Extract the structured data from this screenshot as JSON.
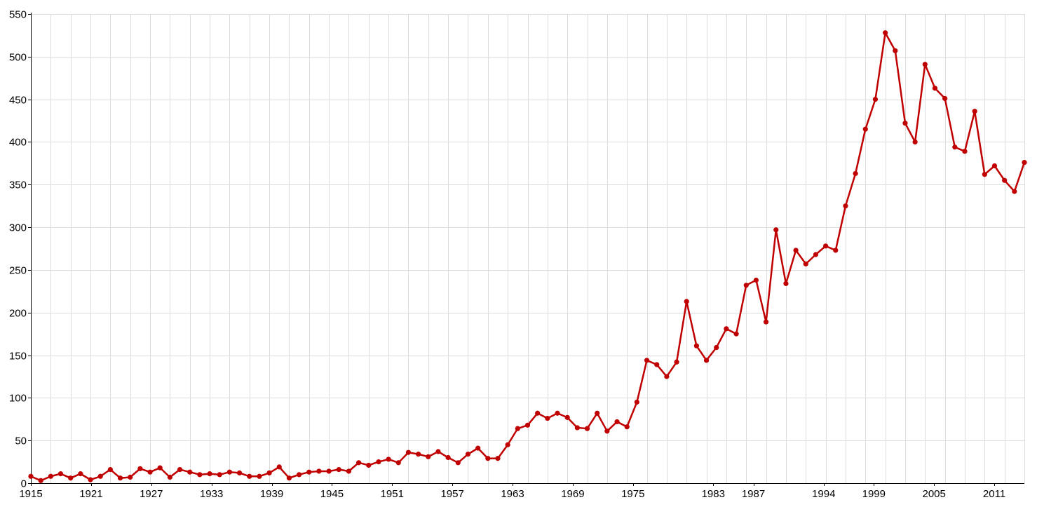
{
  "colors": {
    "series": "#c00000",
    "grid": "#dcdcdc",
    "axis": "#000000",
    "background": "#ffffff"
  },
  "chart_data": {
    "type": "line",
    "title": "",
    "xlabel": "",
    "ylabel": "",
    "grid": true,
    "legend": "none",
    "xlim": [
      1915,
      2014
    ],
    "ylim": [
      0,
      550
    ],
    "y_ticks": [
      "0",
      "50",
      "100",
      "150",
      "200",
      "250",
      "300",
      "350",
      "400",
      "450",
      "500",
      "550"
    ],
    "x_tick_labels": [
      "1915",
      "1921",
      "1927",
      "1933",
      "1939",
      "1945",
      "1951",
      "1957",
      "1963",
      "1969",
      "1975",
      "1983",
      "1987",
      "1994",
      "1999",
      "2005",
      "2011"
    ],
    "series": [
      {
        "values": [
          8,
          3,
          8,
          11,
          6,
          11,
          4,
          8,
          16,
          6,
          7,
          17,
          13,
          18,
          7,
          16,
          13,
          10,
          11,
          10,
          13,
          12,
          8,
          8,
          12,
          19,
          6,
          10,
          13,
          14,
          14,
          16,
          14,
          24,
          21,
          25,
          28,
          24,
          36,
          34,
          31,
          37,
          30,
          24,
          34,
          41,
          29,
          29,
          45,
          64,
          68,
          82,
          76,
          82,
          77,
          65,
          64,
          82,
          61,
          72,
          66,
          95,
          144,
          139,
          125,
          142,
          213,
          161,
          144,
          159,
          181,
          175,
          232,
          238,
          189,
          297,
          234,
          273,
          257,
          268,
          278,
          273,
          325,
          363,
          415,
          450,
          528,
          507,
          422,
          400,
          491,
          463,
          451,
          394,
          389,
          436,
          362,
          372,
          355,
          342,
          376
        ]
      }
    ]
  }
}
